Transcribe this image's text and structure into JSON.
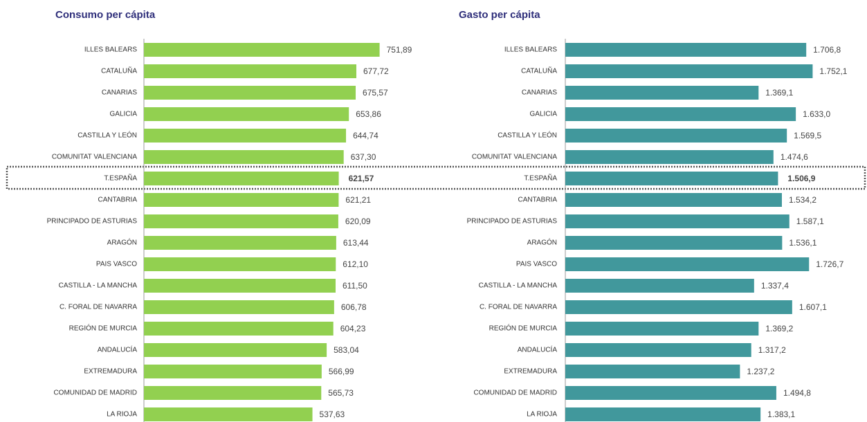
{
  "chart_data": [
    {
      "type": "bar",
      "title": "Consumo per cápita",
      "color": "#92d050",
      "xlim": [
        0,
        1000
      ],
      "highlight": 6,
      "categories": [
        "ILLES BALEARS",
        "CATALUÑA",
        "CANARIAS",
        "GALICIA",
        "CASTILLA Y LEÓN",
        "COMUNITAT VALENCIANA",
        "T.ESPAÑA",
        "CANTABRIA",
        "PRINCIPADO DE ASTURIAS",
        "ARAGÓN",
        "PAIS VASCO",
        "CASTILLA - LA MANCHA",
        "C. FORAL DE NAVARRA",
        "REGIÓN DE MURCIA",
        "ANDALUCÍA",
        "EXTREMADURA",
        "COMUNIDAD DE MADRID",
        "LA RIOJA"
      ],
      "values": [
        751.89,
        677.72,
        675.57,
        653.86,
        644.74,
        637.3,
        621.57,
        621.21,
        620.09,
        613.44,
        612.1,
        611.5,
        606.78,
        604.23,
        583.04,
        566.99,
        565.73,
        537.63
      ],
      "value_labels": [
        "751,89",
        "677,72",
        "675,57",
        "653,86",
        "644,74",
        "637,30",
        "621,57",
        "621,21",
        "620,09",
        "613,44",
        "612,10",
        "611,50",
        "606,78",
        "604,23",
        "583,04",
        "566,99",
        "565,73",
        "537,63"
      ]
    },
    {
      "type": "bar",
      "title": "Gasto per cápita",
      "color": "#41989c",
      "xlim": [
        0,
        2000
      ],
      "highlight": 6,
      "categories": [
        "ILLES BALEARS",
        "CATALUÑA",
        "CANARIAS",
        "GALICIA",
        "CASTILLA Y LEÓN",
        "COMUNITAT VALENCIANA",
        "T.ESPAÑA",
        "CANTABRIA",
        "PRINCIPADO DE ASTURIAS",
        "ARAGÓN",
        "PAIS VASCO",
        "CASTILLA - LA MANCHA",
        "C. FORAL DE NAVARRA",
        "REGIÓN DE MURCIA",
        "ANDALUCÍA",
        "EXTREMADURA",
        "COMUNIDAD DE MADRID",
        "LA RIOJA"
      ],
      "values": [
        1706.8,
        1752.1,
        1369.1,
        1633.0,
        1569.5,
        1474.6,
        1506.9,
        1534.2,
        1587.1,
        1536.1,
        1726.7,
        1337.4,
        1607.1,
        1369.2,
        1317.2,
        1237.2,
        1494.8,
        1383.1
      ],
      "value_labels": [
        "1.706,8",
        "1.752,1",
        "1.369,1",
        "1.633,0",
        "1.569,5",
        "1.474,6",
        "1.506,9",
        "1.534,2",
        "1.587,1",
        "1.536,1",
        "1.726,7",
        "1.337,4",
        "1.607,1",
        "1.369,2",
        "1.317,2",
        "1.237,2",
        "1.494,8",
        "1.383,1"
      ]
    }
  ]
}
